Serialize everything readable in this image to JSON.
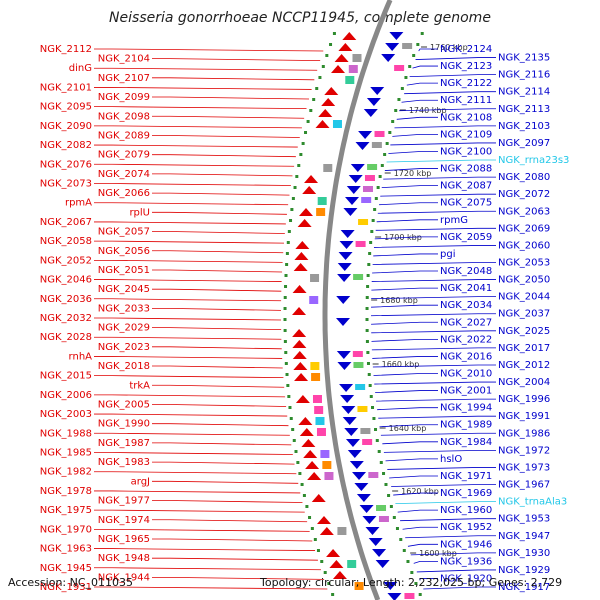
{
  "title": "Neisseria gonorrhoeae NCCP11945, complete genome",
  "footer": {
    "accession": "Accession: NC_011035",
    "topology": "Topology: circular; Length: 2,232,025 bp; Genes: 2,729"
  },
  "colors": {
    "forward": "#e00000",
    "reverse": "#0000cc",
    "rna": "#22c7e8",
    "backbone": "#888888"
  },
  "kbp_ticks": [
    "1760 kbp",
    "1740 kbp",
    "1720 kbp",
    "1700 kbp",
    "1680 kbp",
    "1660 kbp",
    "1640 kbp",
    "1620 kbp",
    "1600 kbp"
  ],
  "left_labels": [
    "NGK_2112",
    "NGK_2104",
    "dinG",
    "NGK_2107",
    "NGK_2101",
    "NGK_2099",
    "NGK_2095",
    "NGK_2098",
    "NGK_2090",
    "NGK_2089",
    "NGK_2082",
    "NGK_2079",
    "NGK_2076",
    "NGK_2074",
    "NGK_2073",
    "NGK_2066",
    "rpmA",
    "rplU",
    "NGK_2067",
    "NGK_2057",
    "NGK_2058",
    "NGK_2056",
    "NGK_2052",
    "NGK_2051",
    "NGK_2046",
    "NGK_2045",
    "NGK_2036",
    "NGK_2033",
    "NGK_2032",
    "NGK_2029",
    "NGK_2028",
    "NGK_2023",
    "rnhA",
    "NGK_2018",
    "NGK_2015",
    "trkA",
    "NGK_2006",
    "NGK_2005",
    "NGK_2003",
    "NGK_1990",
    "NGK_1988",
    "NGK_1987",
    "NGK_1985",
    "NGK_1983",
    "NGK_1982",
    "argJ",
    "NGK_1978",
    "NGK_1977",
    "NGK_1975",
    "NGK_1974",
    "NGK_1970",
    "NGK_1965",
    "NGK_1963",
    "NGK_1948",
    "NGK_1945",
    "NGK_1944",
    "NGK_1931"
  ],
  "right_labels": [
    "NGK_2124",
    "NGK_2135",
    "NGK_2123",
    "NGK_2116",
    "NGK_2122",
    "NGK_2114",
    "NGK_2111",
    "NGK_2113",
    "NGK_2108",
    "NGK_2103",
    "NGK_2109",
    "NGK_2097",
    "NGK_2100",
    "NGK_rrna23s3",
    "NGK_2088",
    "NGK_2080",
    "NGK_2087",
    "NGK_2072",
    "NGK_2075",
    "NGK_2063",
    "rpmG",
    "NGK_2069",
    "NGK_2059",
    "NGK_2060",
    "pgi",
    "NGK_2053",
    "NGK_2048",
    "NGK_2050",
    "NGK_2041",
    "NGK_2044",
    "NGK_2034",
    "NGK_2037",
    "NGK_2027",
    "NGK_2025",
    "NGK_2022",
    "NGK_2017",
    "NGK_2016",
    "NGK_2012",
    "NGK_2010",
    "NGK_2004",
    "NGK_2001",
    "NGK_1996",
    "NGK_1994",
    "NGK_1991",
    "NGK_1989",
    "NGK_1986",
    "NGK_1984",
    "NGK_1972",
    "hslO",
    "NGK_1973",
    "NGK_1971",
    "NGK_1967",
    "NGK_1969",
    "NGK_trnaAla3",
    "NGK_1960",
    "NGK_1953",
    "NGK_1952",
    "NGK_1947",
    "NGK_1946",
    "NGK_1930",
    "NGK_1936",
    "NGK_1929",
    "NGK_1920",
    "NGK_1917"
  ]
}
